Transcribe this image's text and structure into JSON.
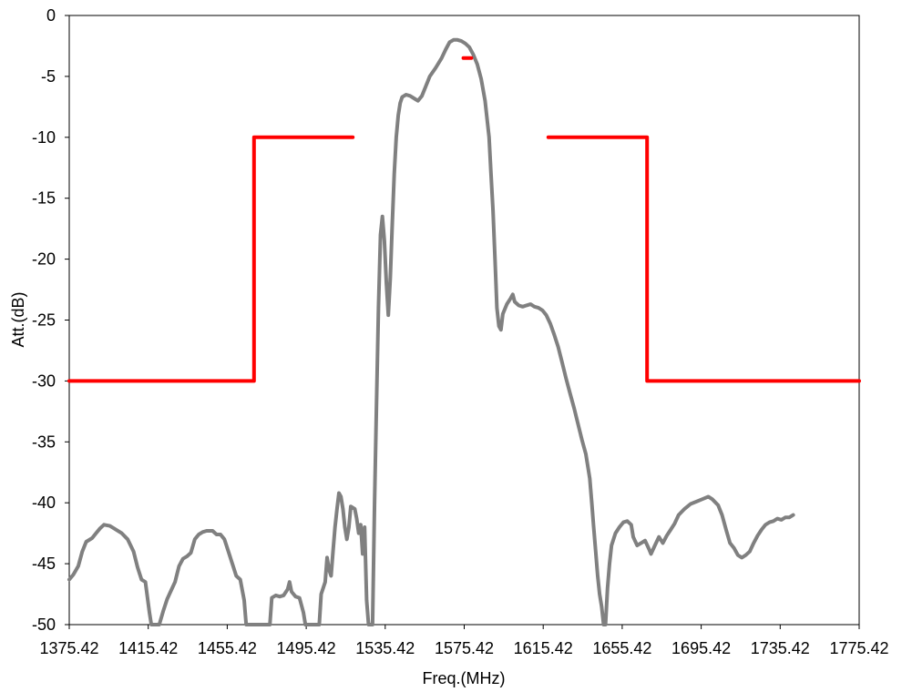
{
  "chart_data": {
    "type": "line",
    "title": "",
    "xlabel": "Freq.(MHz)",
    "ylabel": "Att.(dB)",
    "xlim": [
      1375.42,
      1775.42
    ],
    "ylim": [
      -50,
      0
    ],
    "x_ticks": [
      "1375.42",
      "1415.42",
      "1455.42",
      "1495.42",
      "1535.42",
      "1575.42",
      "1615.42",
      "1655.42",
      "1695.42",
      "1735.42",
      "1775.42"
    ],
    "y_ticks": [
      "0",
      "-5",
      "-10",
      "-15",
      "-20",
      "-25",
      "-30",
      "-35",
      "-40",
      "-45",
      "-50"
    ],
    "grid": false,
    "legend": "none",
    "series": [
      {
        "color": "#808080",
        "points": [
          [
            1375.4,
            -46.3
          ],
          [
            1377.5,
            -45.9
          ],
          [
            1380,
            -45.2
          ],
          [
            1382,
            -44
          ],
          [
            1384,
            -43.2
          ],
          [
            1387,
            -42.9
          ],
          [
            1389,
            -42.5
          ],
          [
            1391,
            -42.1
          ],
          [
            1393,
            -41.8
          ],
          [
            1396,
            -41.9
          ],
          [
            1399,
            -42.2
          ],
          [
            1402,
            -42.5
          ],
          [
            1405,
            -43
          ],
          [
            1408,
            -44
          ],
          [
            1410,
            -45.3
          ],
          [
            1412,
            -46.3
          ],
          [
            1414,
            -46.5
          ],
          [
            1416,
            -49
          ],
          [
            1417,
            -50
          ],
          [
            1421,
            -50
          ],
          [
            1423,
            -48.9
          ],
          [
            1425,
            -47.9
          ],
          [
            1427,
            -47.2
          ],
          [
            1429,
            -46.5
          ],
          [
            1431,
            -45.2
          ],
          [
            1433,
            -44.6
          ],
          [
            1435,
            -44.4
          ],
          [
            1437,
            -44.1
          ],
          [
            1439,
            -43
          ],
          [
            1441,
            -42.6
          ],
          [
            1443,
            -42.4
          ],
          [
            1445,
            -42.3
          ],
          [
            1448,
            -42.3
          ],
          [
            1450,
            -42.6
          ],
          [
            1452,
            -42.6
          ],
          [
            1454,
            -43
          ],
          [
            1456,
            -44
          ],
          [
            1458,
            -45
          ],
          [
            1460,
            -46
          ],
          [
            1462,
            -46.3
          ],
          [
            1464,
            -48
          ],
          [
            1465,
            -50
          ],
          [
            1477,
            -50
          ],
          [
            1478,
            -47.8
          ],
          [
            1480,
            -47.6
          ],
          [
            1482,
            -47.7
          ],
          [
            1484,
            -47.6
          ],
          [
            1486,
            -47.1
          ],
          [
            1487,
            -46.5
          ],
          [
            1488,
            -47.3
          ],
          [
            1490,
            -47.7
          ],
          [
            1492,
            -47.8
          ],
          [
            1494,
            -49
          ],
          [
            1495,
            -50
          ],
          [
            1502,
            -50
          ],
          [
            1503,
            -47.5
          ],
          [
            1505,
            -46.5
          ],
          [
            1506,
            -44.5
          ],
          [
            1507,
            -45.5
          ],
          [
            1508,
            -46
          ],
          [
            1509,
            -44
          ],
          [
            1510,
            -42
          ],
          [
            1511,
            -40.5
          ],
          [
            1512,
            -39.2
          ],
          [
            1513,
            -39.5
          ],
          [
            1514,
            -40.5
          ],
          [
            1515,
            -42
          ],
          [
            1516,
            -43
          ],
          [
            1517,
            -42
          ],
          [
            1518,
            -40.3
          ],
          [
            1520,
            -40.5
          ],
          [
            1521,
            -41.3
          ],
          [
            1522,
            -42.5
          ],
          [
            1523,
            -41.8
          ],
          [
            1524,
            -44.2
          ],
          [
            1525,
            -42
          ],
          [
            1526,
            -48
          ],
          [
            1527,
            -50
          ],
          [
            1529,
            -50
          ],
          [
            1530,
            -40
          ],
          [
            1531,
            -32
          ],
          [
            1532,
            -24
          ],
          [
            1533,
            -18
          ],
          [
            1534,
            -16.5
          ],
          [
            1535,
            -18.5
          ],
          [
            1536,
            -22
          ],
          [
            1537,
            -24.6
          ],
          [
            1538,
            -21.5
          ],
          [
            1539,
            -17
          ],
          [
            1540,
            -13
          ],
          [
            1541,
            -10
          ],
          [
            1542,
            -8.2
          ],
          [
            1543,
            -7.2
          ],
          [
            1544,
            -6.7
          ],
          [
            1546,
            -6.5
          ],
          [
            1548,
            -6.6
          ],
          [
            1550,
            -6.8
          ],
          [
            1552,
            -7
          ],
          [
            1554,
            -6.6
          ],
          [
            1556,
            -5.8
          ],
          [
            1558,
            -5
          ],
          [
            1561,
            -4.3
          ],
          [
            1564,
            -3.5
          ],
          [
            1566,
            -2.8
          ],
          [
            1568,
            -2.2
          ],
          [
            1570,
            -2
          ],
          [
            1572,
            -2
          ],
          [
            1574,
            -2.1
          ],
          [
            1576,
            -2.3
          ],
          [
            1578,
            -2.6
          ],
          [
            1580,
            -3.2
          ],
          [
            1582,
            -4
          ],
          [
            1584,
            -5.2
          ],
          [
            1586,
            -7
          ],
          [
            1588,
            -10
          ],
          [
            1589,
            -13
          ],
          [
            1590,
            -16
          ],
          [
            1591,
            -20
          ],
          [
            1592,
            -24
          ],
          [
            1593,
            -25.5
          ],
          [
            1594,
            -25.8
          ],
          [
            1595,
            -24.5
          ],
          [
            1597,
            -23.7
          ],
          [
            1599,
            -23.2
          ],
          [
            1600,
            -22.9
          ],
          [
            1601,
            -23.5
          ],
          [
            1603,
            -23.8
          ],
          [
            1605,
            -23.9
          ],
          [
            1607,
            -23.8
          ],
          [
            1609,
            -23.7
          ],
          [
            1611,
            -23.9
          ],
          [
            1613,
            -24
          ],
          [
            1615,
            -24.2
          ],
          [
            1617,
            -24.6
          ],
          [
            1619,
            -25.3
          ],
          [
            1621,
            -26.2
          ],
          [
            1623,
            -27.2
          ],
          [
            1625,
            -28.5
          ],
          [
            1627,
            -29.8
          ],
          [
            1629,
            -31
          ],
          [
            1631,
            -32.2
          ],
          [
            1633,
            -33.5
          ],
          [
            1635,
            -34.8
          ],
          [
            1637,
            -36
          ],
          [
            1639,
            -38
          ],
          [
            1640,
            -40
          ],
          [
            1641,
            -42
          ],
          [
            1642,
            -44
          ],
          [
            1643,
            -46
          ],
          [
            1644,
            -47.5
          ],
          [
            1645,
            -48.5
          ],
          [
            1646,
            -50
          ],
          [
            1647,
            -50
          ],
          [
            1648,
            -47
          ],
          [
            1649,
            -45
          ],
          [
            1650,
            -43.5
          ],
          [
            1652,
            -42.5
          ],
          [
            1654,
            -42
          ],
          [
            1656,
            -41.6
          ],
          [
            1658,
            -41.5
          ],
          [
            1660,
            -41.8
          ],
          [
            1661,
            -42.8
          ],
          [
            1663,
            -43.5
          ],
          [
            1665,
            -43.3
          ],
          [
            1667,
            -43.1
          ],
          [
            1669,
            -43.8
          ],
          [
            1670,
            -44.2
          ],
          [
            1672,
            -43.5
          ],
          [
            1674,
            -42.8
          ],
          [
            1676,
            -43.3
          ],
          [
            1678,
            -42.7
          ],
          [
            1680,
            -42.2
          ],
          [
            1682,
            -41.7
          ],
          [
            1684,
            -41
          ],
          [
            1687,
            -40.5
          ],
          [
            1690,
            -40.1
          ],
          [
            1693,
            -39.9
          ],
          [
            1696,
            -39.7
          ],
          [
            1699,
            -39.5
          ],
          [
            1701,
            -39.7
          ],
          [
            1704,
            -40.2
          ],
          [
            1706,
            -41
          ],
          [
            1708,
            -42.2
          ],
          [
            1710,
            -43.3
          ],
          [
            1712,
            -43.7
          ],
          [
            1714,
            -44.3
          ],
          [
            1716,
            -44.5
          ],
          [
            1718,
            -44.3
          ],
          [
            1720,
            -44
          ],
          [
            1722,
            -43.3
          ],
          [
            1724,
            -42.7
          ],
          [
            1726,
            -42.2
          ],
          [
            1728,
            -41.8
          ],
          [
            1730,
            -41.6
          ],
          [
            1732,
            -41.5
          ],
          [
            1734,
            -41.3
          ],
          [
            1736,
            -41.4
          ],
          [
            1738,
            -41.2
          ],
          [
            1740,
            -41.2
          ],
          [
            1742,
            -41
          ]
        ]
      },
      {
        "color": "#ff0000",
        "segments": [
          [
            [
              1375.42,
              -30
            ],
            [
              1469,
              -30
            ],
            [
              1469,
              -10
            ],
            [
              1519,
              -10
            ]
          ],
          [
            [
              1618,
              -10
            ],
            [
              1668,
              -10
            ],
            [
              1668,
              -30
            ],
            [
              1775.42,
              -30
            ]
          ],
          [
            [
              1575,
              -3.5
            ],
            [
              1579,
              -3.5
            ]
          ]
        ]
      }
    ]
  }
}
